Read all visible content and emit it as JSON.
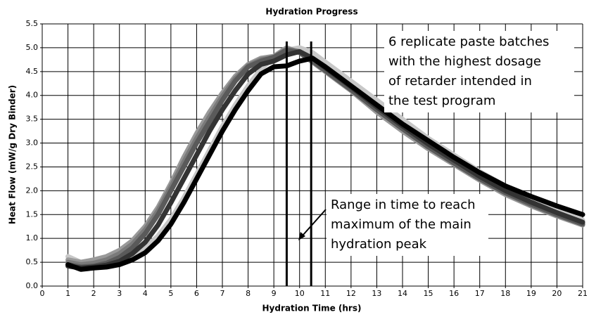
{
  "chart_data": {
    "type": "line",
    "title": "Hydration Progress",
    "xlabel": "Hydration Time (hrs)",
    "ylabel": "Heat Flow (mW/g Dry Binder)",
    "x": [
      1,
      1.5,
      2,
      2.5,
      3,
      3.5,
      4,
      4.5,
      5,
      5.5,
      6,
      6.5,
      7,
      7.5,
      8,
      8.5,
      9,
      9.5,
      10,
      10.5,
      11,
      11.5,
      12,
      13,
      14,
      15,
      16,
      17,
      18,
      19,
      20,
      21
    ],
    "series": [
      {
        "color": "#c8c8c8",
        "values": [
          0.62,
          0.5,
          0.5,
          0.5,
          0.55,
          0.65,
          0.8,
          1.05,
          1.4,
          1.85,
          2.35,
          2.85,
          3.35,
          3.8,
          4.2,
          4.55,
          4.8,
          4.95,
          5.0,
          4.9,
          4.7,
          4.5,
          4.3,
          3.9,
          3.5,
          3.1,
          2.75,
          2.4,
          2.1,
          1.83,
          1.6,
          1.38
        ]
      },
      {
        "color": "#999999",
        "values": [
          0.55,
          0.5,
          0.55,
          0.62,
          0.75,
          0.95,
          1.25,
          1.65,
          2.15,
          2.7,
          3.2,
          3.65,
          4.05,
          4.4,
          4.65,
          4.78,
          4.82,
          5.0,
          4.9,
          4.7,
          4.5,
          4.3,
          4.1,
          3.65,
          3.25,
          2.88,
          2.55,
          2.22,
          1.92,
          1.68,
          1.47,
          1.28
        ]
      },
      {
        "color": "#7a7a7a",
        "values": [
          0.5,
          0.45,
          0.48,
          0.55,
          0.68,
          0.88,
          1.18,
          1.58,
          2.08,
          2.6,
          3.1,
          3.55,
          3.98,
          4.35,
          4.62,
          4.75,
          4.8,
          4.97,
          4.92,
          4.72,
          4.52,
          4.32,
          4.12,
          3.7,
          3.3,
          2.92,
          2.58,
          2.25,
          1.95,
          1.7,
          1.49,
          1.3
        ]
      },
      {
        "color": "#5a5a5a",
        "values": [
          0.45,
          0.4,
          0.42,
          0.48,
          0.6,
          0.8,
          1.1,
          1.5,
          2.0,
          2.5,
          3.0,
          3.45,
          3.9,
          4.3,
          4.6,
          4.72,
          4.8,
          4.95,
          4.9,
          4.72,
          4.52,
          4.32,
          4.12,
          3.7,
          3.3,
          2.92,
          2.58,
          2.25,
          1.96,
          1.72,
          1.5,
          1.3
        ]
      },
      {
        "color": "#333333",
        "values": [
          0.42,
          0.38,
          0.4,
          0.44,
          0.52,
          0.68,
          0.92,
          1.28,
          1.75,
          2.25,
          2.75,
          3.25,
          3.7,
          4.1,
          4.45,
          4.65,
          4.72,
          4.85,
          4.92,
          4.78,
          4.58,
          4.38,
          4.18,
          3.76,
          3.36,
          2.98,
          2.64,
          2.3,
          2.0,
          1.76,
          1.54,
          1.34
        ]
      },
      {
        "color": "#000000",
        "values": [
          0.45,
          0.35,
          0.38,
          0.4,
          0.45,
          0.55,
          0.7,
          0.95,
          1.3,
          1.75,
          2.25,
          2.75,
          3.25,
          3.7,
          4.1,
          4.45,
          4.6,
          4.62,
          4.72,
          4.78,
          4.6,
          4.4,
          4.2,
          3.8,
          3.4,
          3.05,
          2.7,
          2.38,
          2.1,
          1.88,
          1.68,
          1.5
        ]
      }
    ],
    "xlim": [
      0,
      21
    ],
    "xticks": [
      0,
      1,
      2,
      3,
      4,
      5,
      6,
      7,
      8,
      9,
      10,
      11,
      12,
      13,
      14,
      15,
      16,
      17,
      18,
      19,
      20,
      21
    ],
    "ylim": [
      0,
      5.5
    ],
    "yticks": [
      {
        "value": 0,
        "label": "0.0"
      },
      0.5,
      {
        "value": 1,
        "label": "1.0"
      },
      1.5,
      {
        "value": 2,
        "label": "2.0"
      },
      2.5,
      {
        "value": 3,
        "label": "3.0"
      },
      3.5,
      {
        "value": 4,
        "label": "4.0"
      },
      4.5,
      {
        "value": 5,
        "label": "5.0"
      },
      5.5
    ],
    "grid": true,
    "vlines": [
      9.5,
      10.45
    ],
    "annotations": [
      {
        "lines": [
          "6 replicate paste batches",
          "with the highest dosage",
          "of retarder intended in",
          "the test program"
        ]
      },
      {
        "lines": [
          "Range in time to reach",
          "maximum of the main",
          "hydration peak"
        ]
      }
    ]
  }
}
